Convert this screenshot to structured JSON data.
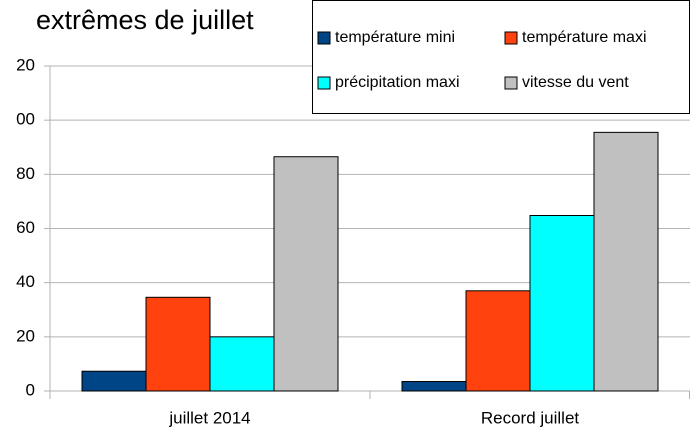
{
  "chart_data": {
    "type": "bar",
    "title": "extrêmes de juillet",
    "categories": [
      "juillet 2014",
      "Record juillet"
    ],
    "series": [
      {
        "name": "température mini",
        "color": "#004586",
        "values": [
          7.3,
          3.5
        ]
      },
      {
        "name": "température maxi",
        "color": "#ff420e",
        "values": [
          34.6,
          37
        ]
      },
      {
        "name": "précipitation maxi",
        "color": "#00ffff",
        "values": [
          20,
          64.8
        ]
      },
      {
        "name": "vitesse du vent",
        "color": "#c0c0c0",
        "values": [
          86.5,
          95.5
        ]
      }
    ],
    "ylim": [
      0,
      120
    ],
    "yticks": [
      0,
      20,
      40,
      60,
      80,
      {
        "value": 100,
        "label": "00"
      },
      {
        "value": 120,
        "label": "20"
      }
    ],
    "grid": true,
    "legend": "top-right"
  }
}
